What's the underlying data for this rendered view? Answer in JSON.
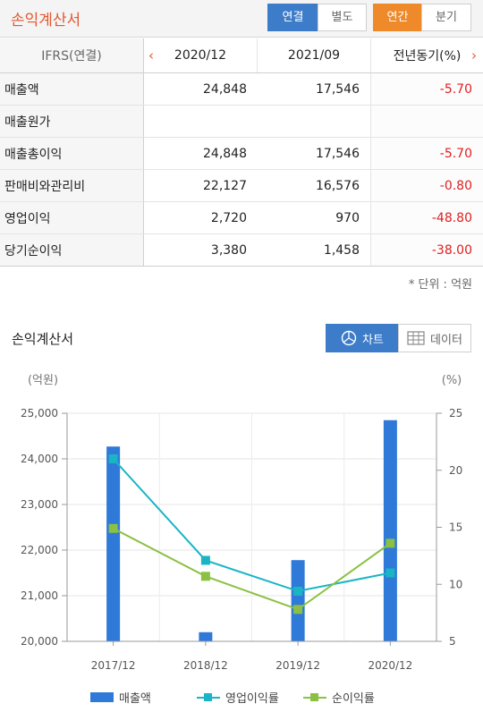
{
  "header": {
    "title": "손익계산서",
    "scope_buttons": [
      "연결",
      "별도"
    ],
    "period_buttons": [
      "연간",
      "분기"
    ]
  },
  "table": {
    "corner": "IFRS(연결)",
    "columns": [
      "2020/12",
      "2021/09",
      "전년동기(%)"
    ],
    "rows": [
      {
        "label": "매출액",
        "values": [
          "24,848",
          "17,546",
          "-5.70"
        ]
      },
      {
        "label": "매출원가",
        "values": [
          "",
          "",
          ""
        ]
      },
      {
        "label": "매출총이익",
        "values": [
          "24,848",
          "17,546",
          "-5.70"
        ]
      },
      {
        "label": "판매비와관리비",
        "values": [
          "22,127",
          "16,576",
          "-0.80"
        ]
      },
      {
        "label": "영업이익",
        "values": [
          "2,720",
          "970",
          "-48.80"
        ]
      },
      {
        "label": "당기순이익",
        "values": [
          "3,380",
          "1,458",
          "-38.00"
        ]
      }
    ],
    "unit_note": "* 단위 : 억원",
    "prev_icon": "‹",
    "next_icon": "›"
  },
  "chart_section": {
    "title": "손익계산서",
    "toggle_chart": "차트",
    "toggle_data": "데이터",
    "chart_icon": "pie-chart-icon",
    "data_icon": "table-grid-icon"
  },
  "chart_data": {
    "type": "bar",
    "categories": [
      "2017/12",
      "2018/12",
      "2019/12",
      "2020/12"
    ],
    "left_axis": {
      "unit": "(억원)",
      "ylim": [
        20000,
        25000
      ],
      "ticks": [
        "20,000",
        "21,000",
        "22,000",
        "23,000",
        "24,000",
        "25,000"
      ],
      "tick_values": [
        20000,
        21000,
        22000,
        23000,
        24000,
        25000
      ]
    },
    "right_axis": {
      "unit": "(%)",
      "ylim": [
        5,
        25
      ],
      "ticks": [
        "5",
        "10",
        "15",
        "20",
        "25"
      ],
      "tick_values": [
        5,
        10,
        15,
        20,
        25
      ]
    },
    "series": [
      {
        "name": "매출액",
        "kind": "bar",
        "axis": "left",
        "color": "#2f79d9",
        "values": [
          24270,
          20200,
          21780,
          24848
        ]
      },
      {
        "name": "영업이익률",
        "kind": "line",
        "axis": "right",
        "color": "#1ab5c5",
        "values": [
          21.0,
          12.1,
          9.4,
          11.0
        ]
      },
      {
        "name": "순이익률",
        "kind": "line",
        "axis": "right",
        "color": "#8cc043",
        "values": [
          14.9,
          10.7,
          7.8,
          13.6
        ]
      }
    ],
    "grid": true,
    "legend_position": "bottom"
  }
}
